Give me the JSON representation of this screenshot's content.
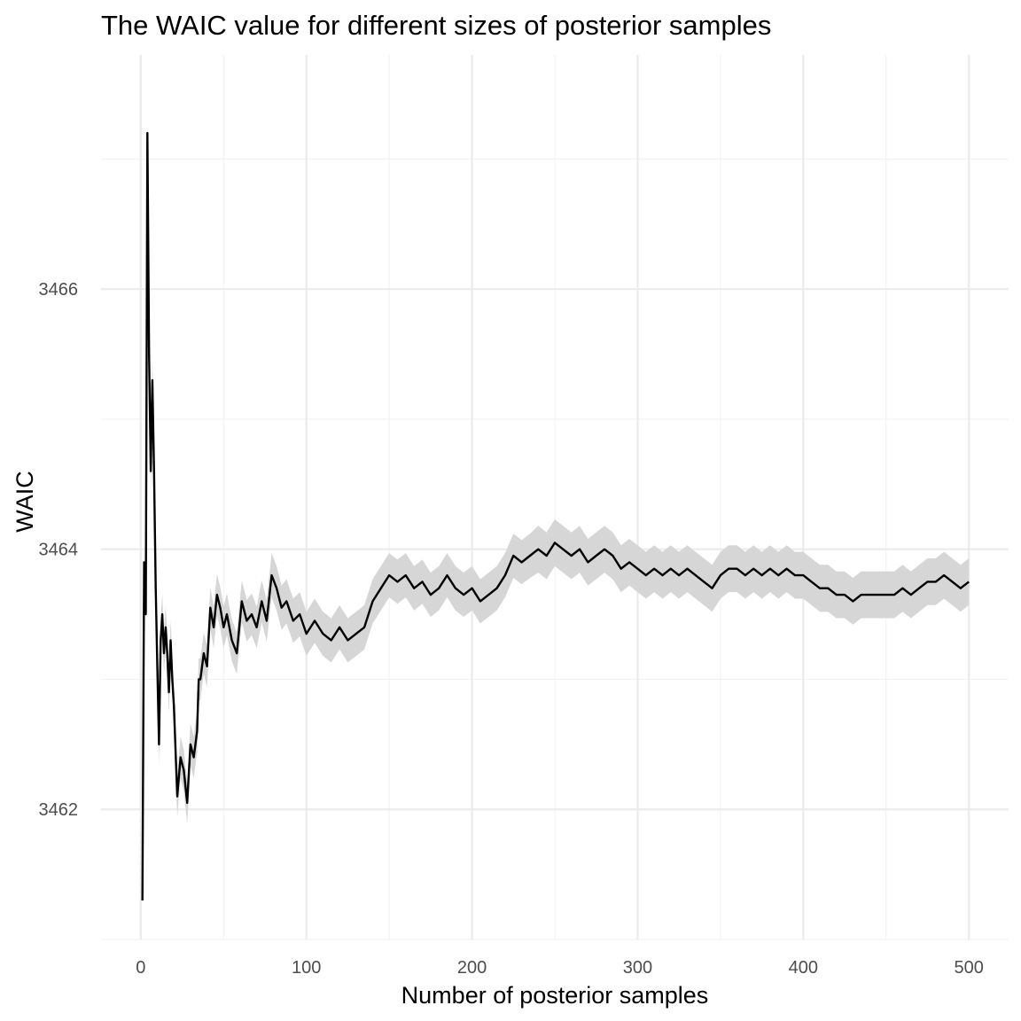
{
  "chart_data": {
    "type": "line",
    "title": "The WAIC value for different sizes of posterior samples",
    "xlabel": "Number of posterior samples",
    "ylabel": "WAIC",
    "x_ticks": [
      0,
      100,
      200,
      300,
      400,
      500
    ],
    "y_ticks": [
      3462,
      3464,
      3466
    ],
    "xlim": [
      -24,
      524
    ],
    "ylim": [
      3461.0,
      3467.8
    ],
    "grid": true,
    "legend": "none",
    "line_color": "#000000",
    "band_color": "#d6d6d6",
    "series": [
      {
        "x": [
          1,
          2,
          3,
          4,
          5,
          6,
          7,
          8,
          9,
          10,
          11,
          12,
          13,
          14,
          15,
          16,
          17,
          18,
          19,
          20,
          22,
          24,
          26,
          28,
          30,
          32,
          34,
          35,
          36,
          38,
          40,
          42,
          44,
          46,
          48,
          50,
          52,
          55,
          58,
          61,
          64,
          67,
          70,
          73,
          76,
          79,
          82,
          85,
          88,
          92,
          96,
          100,
          105,
          110,
          115,
          120,
          125,
          130,
          135,
          140,
          145,
          150,
          155,
          160,
          165,
          170,
          175,
          180,
          185,
          190,
          195,
          200,
          205,
          210,
          215,
          220,
          225,
          230,
          235,
          240,
          245,
          250,
          255,
          260,
          265,
          270,
          275,
          280,
          285,
          290,
          295,
          300,
          305,
          310,
          315,
          320,
          325,
          330,
          335,
          340,
          345,
          350,
          355,
          360,
          365,
          370,
          375,
          380,
          385,
          390,
          395,
          400,
          405,
          410,
          415,
          420,
          425,
          430,
          435,
          440,
          445,
          450,
          455,
          460,
          465,
          470,
          475,
          480,
          485,
          490,
          495,
          500
        ],
        "y": [
          3461.3,
          3463.9,
          3463.5,
          3467.2,
          3465.5,
          3464.6,
          3465.3,
          3464.6,
          3463.7,
          3463.1,
          3462.5,
          3463.3,
          3463.5,
          3463.2,
          3463.4,
          3463.2,
          3462.9,
          3463.3,
          3463.0,
          3462.8,
          3462.1,
          3462.4,
          3462.3,
          3462.05,
          3462.5,
          3462.4,
          3462.6,
          3463.0,
          3463.0,
          3463.2,
          3463.1,
          3463.55,
          3463.4,
          3463.65,
          3463.55,
          3463.4,
          3463.5,
          3463.3,
          3463.2,
          3463.6,
          3463.45,
          3463.5,
          3463.4,
          3463.6,
          3463.45,
          3463.8,
          3463.7,
          3463.55,
          3463.6,
          3463.45,
          3463.5,
          3463.35,
          3463.45,
          3463.35,
          3463.3,
          3463.4,
          3463.3,
          3463.35,
          3463.4,
          3463.6,
          3463.7,
          3463.8,
          3463.75,
          3463.8,
          3463.7,
          3463.75,
          3463.65,
          3463.7,
          3463.8,
          3463.7,
          3463.65,
          3463.7,
          3463.6,
          3463.65,
          3463.7,
          3463.8,
          3463.95,
          3463.9,
          3463.95,
          3464.0,
          3463.95,
          3464.05,
          3464.0,
          3463.95,
          3464.0,
          3463.9,
          3463.95,
          3464.0,
          3463.95,
          3463.85,
          3463.9,
          3463.85,
          3463.8,
          3463.85,
          3463.8,
          3463.85,
          3463.8,
          3463.85,
          3463.8,
          3463.75,
          3463.7,
          3463.8,
          3463.85,
          3463.85,
          3463.8,
          3463.85,
          3463.8,
          3463.85,
          3463.8,
          3463.85,
          3463.8,
          3463.8,
          3463.75,
          3463.7,
          3463.7,
          3463.65,
          3463.65,
          3463.6,
          3463.65,
          3463.65,
          3463.65,
          3463.65,
          3463.65,
          3463.7,
          3463.65,
          3463.7,
          3463.75,
          3463.75,
          3463.8,
          3463.75,
          3463.7,
          3463.75
        ],
        "band_halfwidth": [
          0.05,
          0.05,
          0.05,
          0.05,
          0.15,
          0.18,
          0.18,
          0.17,
          0.17,
          0.16,
          0.16,
          0.16,
          0.16,
          0.16,
          0.16,
          0.16,
          0.16,
          0.16,
          0.16,
          0.16,
          0.16,
          0.16,
          0.16,
          0.16,
          0.16,
          0.16,
          0.16,
          0.16,
          0.16,
          0.16,
          0.16,
          0.16,
          0.16,
          0.16,
          0.16,
          0.16,
          0.16,
          0.16,
          0.16,
          0.16,
          0.16,
          0.16,
          0.16,
          0.16,
          0.16,
          0.17,
          0.17,
          0.17,
          0.17,
          0.17,
          0.17,
          0.17,
          0.17,
          0.17,
          0.17,
          0.17,
          0.17,
          0.17,
          0.17,
          0.17,
          0.17,
          0.17,
          0.17,
          0.17,
          0.17,
          0.17,
          0.17,
          0.17,
          0.17,
          0.17,
          0.17,
          0.17,
          0.17,
          0.17,
          0.17,
          0.17,
          0.17,
          0.17,
          0.17,
          0.18,
          0.18,
          0.18,
          0.18,
          0.18,
          0.18,
          0.18,
          0.18,
          0.18,
          0.18,
          0.18,
          0.18,
          0.18,
          0.18,
          0.18,
          0.18,
          0.18,
          0.18,
          0.18,
          0.18,
          0.18,
          0.18,
          0.18,
          0.18,
          0.18,
          0.18,
          0.18,
          0.18,
          0.18,
          0.18,
          0.18,
          0.18,
          0.18,
          0.18,
          0.18,
          0.18,
          0.18,
          0.18,
          0.18,
          0.18,
          0.18,
          0.18,
          0.18,
          0.18,
          0.18,
          0.18,
          0.18,
          0.18,
          0.18,
          0.18,
          0.18,
          0.18,
          0.18
        ]
      }
    ]
  }
}
